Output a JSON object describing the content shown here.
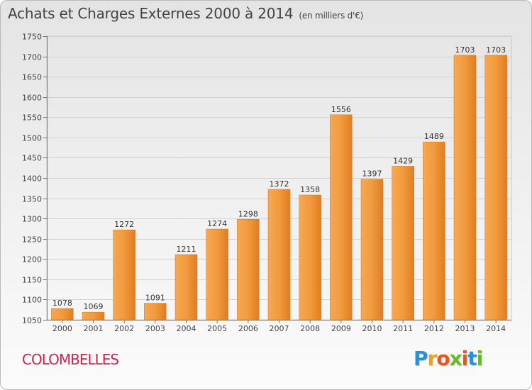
{
  "header": {
    "title": "Achats et Charges Externes 2000 à 2014",
    "subtitle": "(en milliers d'€)"
  },
  "footer": {
    "commune": "COLOMBELLES",
    "logo_letters": [
      "P",
      "r",
      "o",
      "x",
      "i",
      "t",
      "i"
    ],
    "logo_colors": [
      "#2b8fd6",
      "#f0a020",
      "#e8541c",
      "#6ab82c",
      "#e8541c",
      "#2b8fd6",
      "#6ab82c"
    ]
  },
  "chart_data": {
    "type": "bar",
    "title": "Achats et Charges Externes 2000 à 2014",
    "subtitle": "(en milliers d'€)",
    "categories": [
      "2000",
      "2001",
      "2002",
      "2003",
      "2004",
      "2005",
      "2006",
      "2007",
      "2008",
      "2009",
      "2010",
      "2011",
      "2012",
      "2013",
      "2014"
    ],
    "values": [
      1078,
      1069,
      1272,
      1091,
      1211,
      1274,
      1298,
      1372,
      1358,
      1556,
      1397,
      1429,
      1489,
      1703,
      1703
    ],
    "ylim": [
      1050,
      1750
    ],
    "yticks": [
      1050,
      1100,
      1150,
      1200,
      1250,
      1300,
      1350,
      1400,
      1450,
      1500,
      1550,
      1600,
      1650,
      1700,
      1750
    ],
    "grid": true,
    "bar_color": "#f09a3c"
  }
}
